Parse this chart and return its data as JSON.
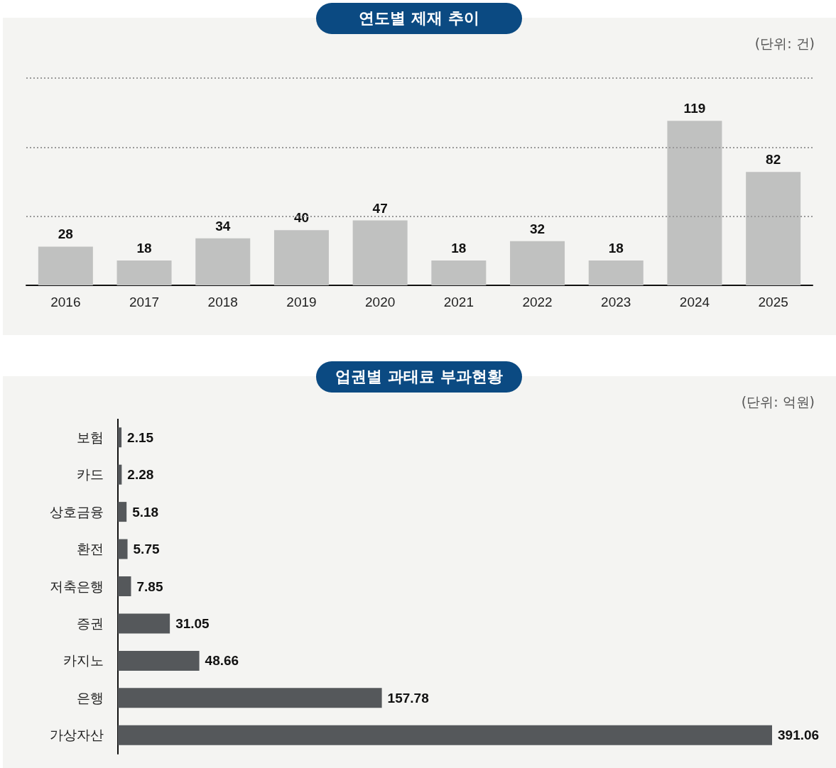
{
  "chart_data": [
    {
      "type": "bar",
      "title": "연도별 제재 추이",
      "annotations": [
        "(단위: 건)"
      ],
      "categories": [
        "2016",
        "2017",
        "2018",
        "2019",
        "2020",
        "2021",
        "2022",
        "2023",
        "2024",
        "2025"
      ],
      "values": [
        28,
        18,
        34,
        40,
        47,
        18,
        32,
        18,
        119,
        82
      ],
      "color": "#c0c1c0",
      "data_labels": true,
      "ylim": [
        0,
        150
      ],
      "tick_labels": "x",
      "ref_lines": [
        {
          "axis": "y",
          "value": 50,
          "line_style": "dotted",
          "color": "#999999"
        },
        {
          "axis": "y",
          "value": 100,
          "line_style": "dotted",
          "color": "#999999"
        },
        {
          "axis": "y",
          "value": 150,
          "line_style": "dotted",
          "color": "#999999"
        }
      ]
    },
    {
      "type": "bar",
      "orientation": "horizontal",
      "title": "업권별 과태료 부과현황",
      "annotations": [
        "(단위: 억원)"
      ],
      "categories": [
        "보험",
        "카드",
        "상호금융",
        "환전",
        "저축은행",
        "증권",
        "카지노",
        "은행",
        "가상자산"
      ],
      "values": [
        2.15,
        2.28,
        5.18,
        5.75,
        7.85,
        31.05,
        48.66,
        157.78,
        391.06
      ],
      "color": "#55585b",
      "data_labels": true,
      "tick_labels": "y"
    }
  ]
}
